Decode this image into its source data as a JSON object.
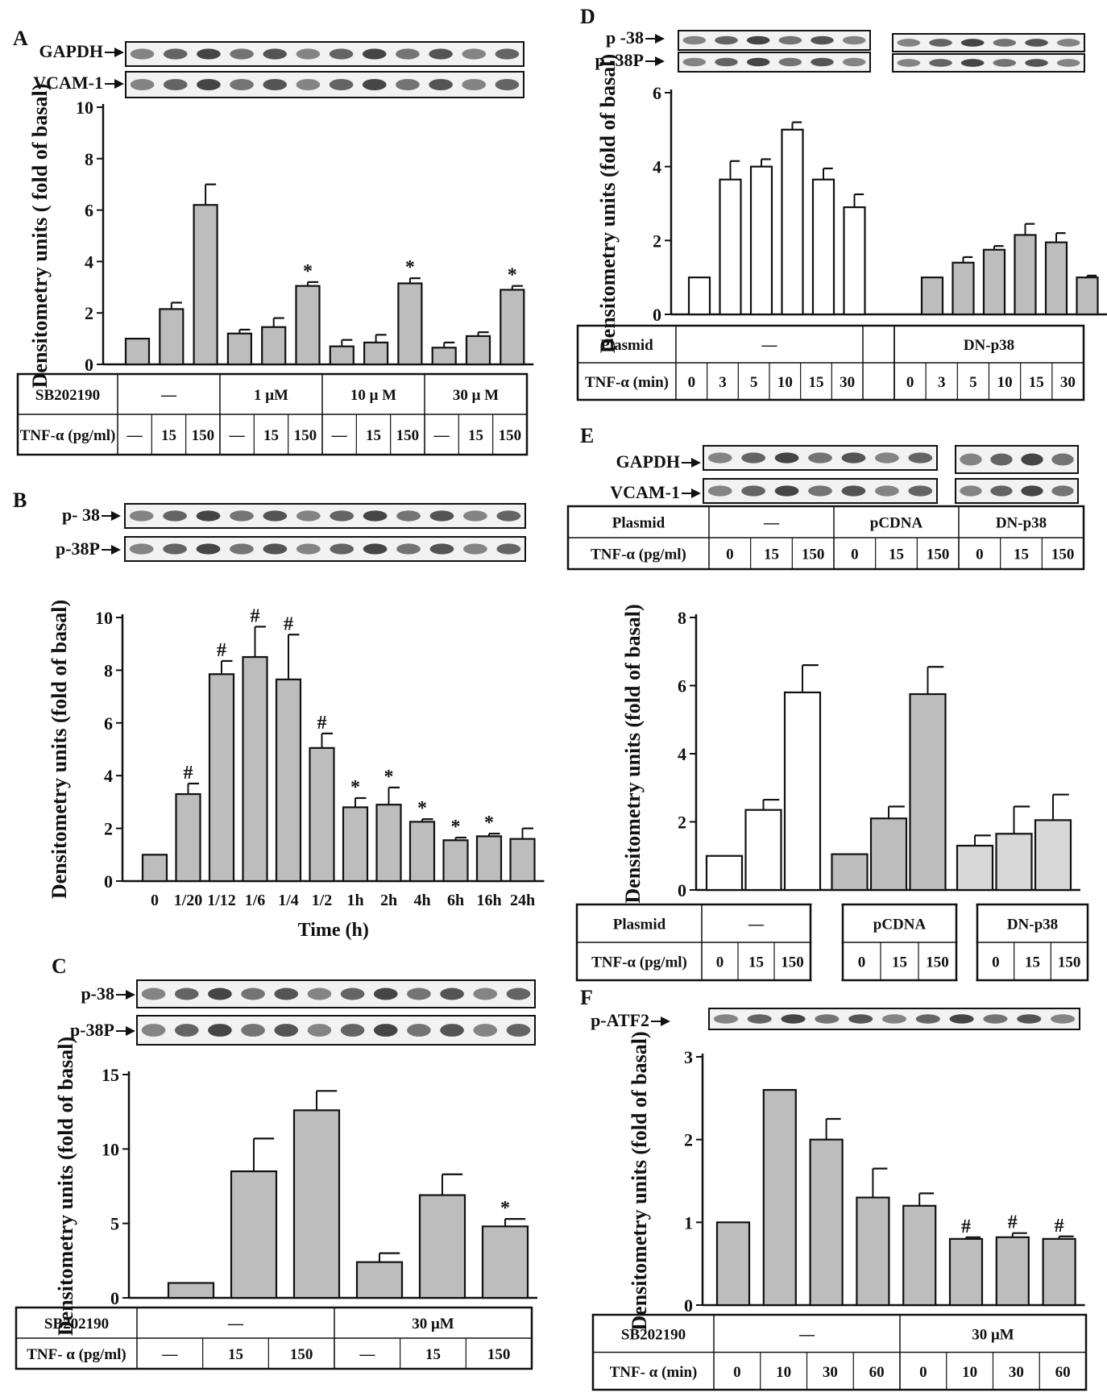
{
  "panels": {
    "A": {
      "letter": "A",
      "blot_labels": [
        "GAPDH",
        "VCAM-1"
      ],
      "table": {
        "rows": [
          {
            "label": "SB202190",
            "cells": [
              "—",
              "1 μM",
              "10 μ M",
              "30 μ M"
            ]
          },
          {
            "label": "TNF-α (pg/ml)",
            "cells": [
              "—",
              "15",
              "150",
              "—",
              "15",
              "150",
              "—",
              "15",
              "150",
              "—",
              "15",
              "150"
            ]
          }
        ]
      }
    },
    "B": {
      "letter": "B",
      "blot_labels": [
        "p- 38",
        "p-38P"
      ]
    },
    "C": {
      "letter": "C",
      "blot_labels": [
        "p-38",
        "p-38P"
      ],
      "table": {
        "rows": [
          {
            "label": "SB202190",
            "cells": [
              "—",
              "30 μM"
            ]
          },
          {
            "label": "TNF- α (pg/ml)",
            "cells": [
              "—",
              "15",
              "150",
              "—",
              "15",
              "150"
            ]
          }
        ]
      }
    },
    "D": {
      "letter": "D",
      "blot_labels": [
        "p -38",
        "p -38P"
      ],
      "table": {
        "rows": [
          {
            "label": "Plasmid",
            "cells": [
              "—",
              "DN-p38"
            ]
          },
          {
            "label": "TNF-α (min)",
            "cells": [
              "0",
              "3",
              "5",
              "10",
              "15",
              "30",
              "0",
              "3",
              "5",
              "10",
              "15",
              "30"
            ]
          }
        ]
      }
    },
    "E": {
      "letter": "E",
      "blot_labels": [
        "GAPDH",
        "VCAM-1"
      ],
      "blot_table": {
        "rows": [
          {
            "label": "Plasmid",
            "cells": [
              "—",
              "pCDNA",
              "DN-p38"
            ]
          },
          {
            "label": "TNF-α (pg/ml)",
            "cells": [
              "0",
              "15",
              "150",
              "0",
              "15",
              "150",
              "0",
              "15",
              "150"
            ]
          }
        ]
      },
      "table": {
        "rows": [
          {
            "label": "Plasmid",
            "cells": [
              "—",
              "pCDNA",
              "DN-p38"
            ]
          },
          {
            "label": "TNF-α (pg/ml)",
            "cells": [
              "0",
              "15",
              "150",
              "0",
              "15",
              "150",
              "0",
              "15",
              "150"
            ]
          }
        ]
      }
    },
    "F": {
      "letter": "F",
      "blot_labels": [
        "p-ATF2"
      ],
      "table": {
        "rows": [
          {
            "label": "SB202190",
            "cells": [
              "—",
              "30 μM"
            ]
          },
          {
            "label": "TNF- α (min)",
            "cells": [
              "0",
              "10",
              "30",
              "60",
              "0",
              "10",
              "30",
              "60"
            ]
          }
        ]
      }
    }
  },
  "colors": {
    "bar_gray": "#bdbdbd",
    "bar_white": "#ffffff",
    "bar_light": "#d8d8d8",
    "stroke": "#111111"
  },
  "chart_data": [
    {
      "panel": "A",
      "type": "bar",
      "ylabel": "Densitometry units ( fold of basal)",
      "ylim": [
        0,
        10
      ],
      "yticks": [
        "0",
        "2",
        "4",
        "6",
        "8",
        "10"
      ],
      "values": [
        1.0,
        2.15,
        6.2,
        1.2,
        1.45,
        3.05,
        0.7,
        0.85,
        3.15,
        0.65,
        1.1,
        2.9
      ],
      "errors": [
        0,
        0.25,
        0.8,
        0.15,
        0.35,
        0.15,
        0.25,
        0.3,
        0.2,
        0.2,
        0.15,
        0.15
      ],
      "marks": [
        "",
        "",
        "",
        "",
        "",
        "*",
        "",
        "",
        "*",
        "",
        "",
        "*"
      ],
      "colors": [
        "gray",
        "gray",
        "gray",
        "gray",
        "gray",
        "gray",
        "gray",
        "gray",
        "gray",
        "gray",
        "gray",
        "gray"
      ]
    },
    {
      "panel": "B",
      "type": "bar",
      "ylabel": "Densitometry units (fold of basal)",
      "xlabel": "Time (h)",
      "ylim": [
        0,
        10
      ],
      "yticks": [
        "0",
        "2",
        "4",
        "6",
        "8",
        "10"
      ],
      "categories": [
        "0",
        "1/20",
        "1/12",
        "1/6",
        "1/4",
        "1/2",
        "1h",
        "2h",
        "4h",
        "6h",
        "16h",
        "24h"
      ],
      "values": [
        1.0,
        3.3,
        7.85,
        8.5,
        7.65,
        5.05,
        2.8,
        2.9,
        2.25,
        1.55,
        1.7,
        1.6
      ],
      "errors": [
        0,
        0.4,
        0.5,
        1.15,
        1.7,
        0.55,
        0.35,
        0.65,
        0.1,
        0.1,
        0.1,
        0.4
      ],
      "marks": [
        "",
        "#",
        "#",
        "#",
        "#",
        "#",
        "*",
        "*",
        "*",
        "*",
        "*",
        ""
      ],
      "colors": [
        "gray",
        "gray",
        "gray",
        "gray",
        "gray",
        "gray",
        "gray",
        "gray",
        "gray",
        "gray",
        "gray",
        "gray"
      ]
    },
    {
      "panel": "C",
      "type": "bar",
      "ylabel": "Densitometry units (fold of basal)",
      "ylim": [
        0,
        15
      ],
      "yticks": [
        "0",
        "5",
        "10",
        "15"
      ],
      "values": [
        1.0,
        8.5,
        12.6,
        2.4,
        6.9,
        4.8
      ],
      "errors": [
        0,
        2.2,
        1.3,
        0.6,
        1.4,
        0.5
      ],
      "marks": [
        "",
        "",
        "",
        "",
        "",
        "*"
      ],
      "colors": [
        "gray",
        "gray",
        "gray",
        "gray",
        "gray",
        "gray"
      ]
    },
    {
      "panel": "D",
      "type": "bar",
      "ylabel": "Densitometry units (fold of basal)",
      "ylim": [
        0,
        6
      ],
      "yticks": [
        "0",
        "2",
        "4",
        "6"
      ],
      "values": [
        1.0,
        3.65,
        4.0,
        5.0,
        3.65,
        2.9,
        1.0,
        1.4,
        1.75,
        2.15,
        1.95,
        1.0
      ],
      "errors": [
        0,
        0.5,
        0.2,
        0.2,
        0.3,
        0.35,
        0,
        0.15,
        0.1,
        0.3,
        0.25,
        0.05
      ],
      "marks": [
        "",
        "",
        "",
        "",
        "",
        "",
        "",
        "",
        "",
        "",
        "",
        ""
      ],
      "colors": [
        "white",
        "white",
        "white",
        "white",
        "white",
        "white",
        "gray",
        "gray",
        "gray",
        "gray",
        "gray",
        "gray"
      ]
    },
    {
      "panel": "E",
      "type": "bar",
      "ylabel": "Densitometry units (fold of basal)",
      "ylim": [
        0,
        8
      ],
      "yticks": [
        "0",
        "2",
        "4",
        "6",
        "8"
      ],
      "values": [
        1.0,
        2.35,
        5.8,
        1.05,
        2.1,
        5.75,
        1.3,
        1.65,
        2.05
      ],
      "errors": [
        0,
        0.3,
        0.8,
        0,
        0.35,
        0.8,
        0.3,
        0.8,
        0.75
      ],
      "marks": [
        "",
        "",
        "",
        "",
        "",
        "",
        "",
        "",
        ""
      ],
      "colors": [
        "white",
        "white",
        "white",
        "gray",
        "gray",
        "gray",
        "light",
        "light",
        "light"
      ]
    },
    {
      "panel": "F",
      "type": "bar",
      "ylabel": "Densitometry units (fold of basal)",
      "ylim": [
        0,
        3
      ],
      "yticks": [
        "0",
        "1",
        "2",
        "3"
      ],
      "values": [
        1.0,
        2.6,
        2.0,
        1.3,
        1.2,
        0.8,
        0.82,
        0.8
      ],
      "errors": [
        0,
        0,
        0.25,
        0.35,
        0.15,
        0.02,
        0.05,
        0.03
      ],
      "marks": [
        "",
        "",
        "",
        "",
        "",
        "#",
        "#",
        "#"
      ],
      "colors": [
        "gray",
        "gray",
        "gray",
        "gray",
        "gray",
        "gray",
        "gray",
        "gray"
      ]
    }
  ]
}
